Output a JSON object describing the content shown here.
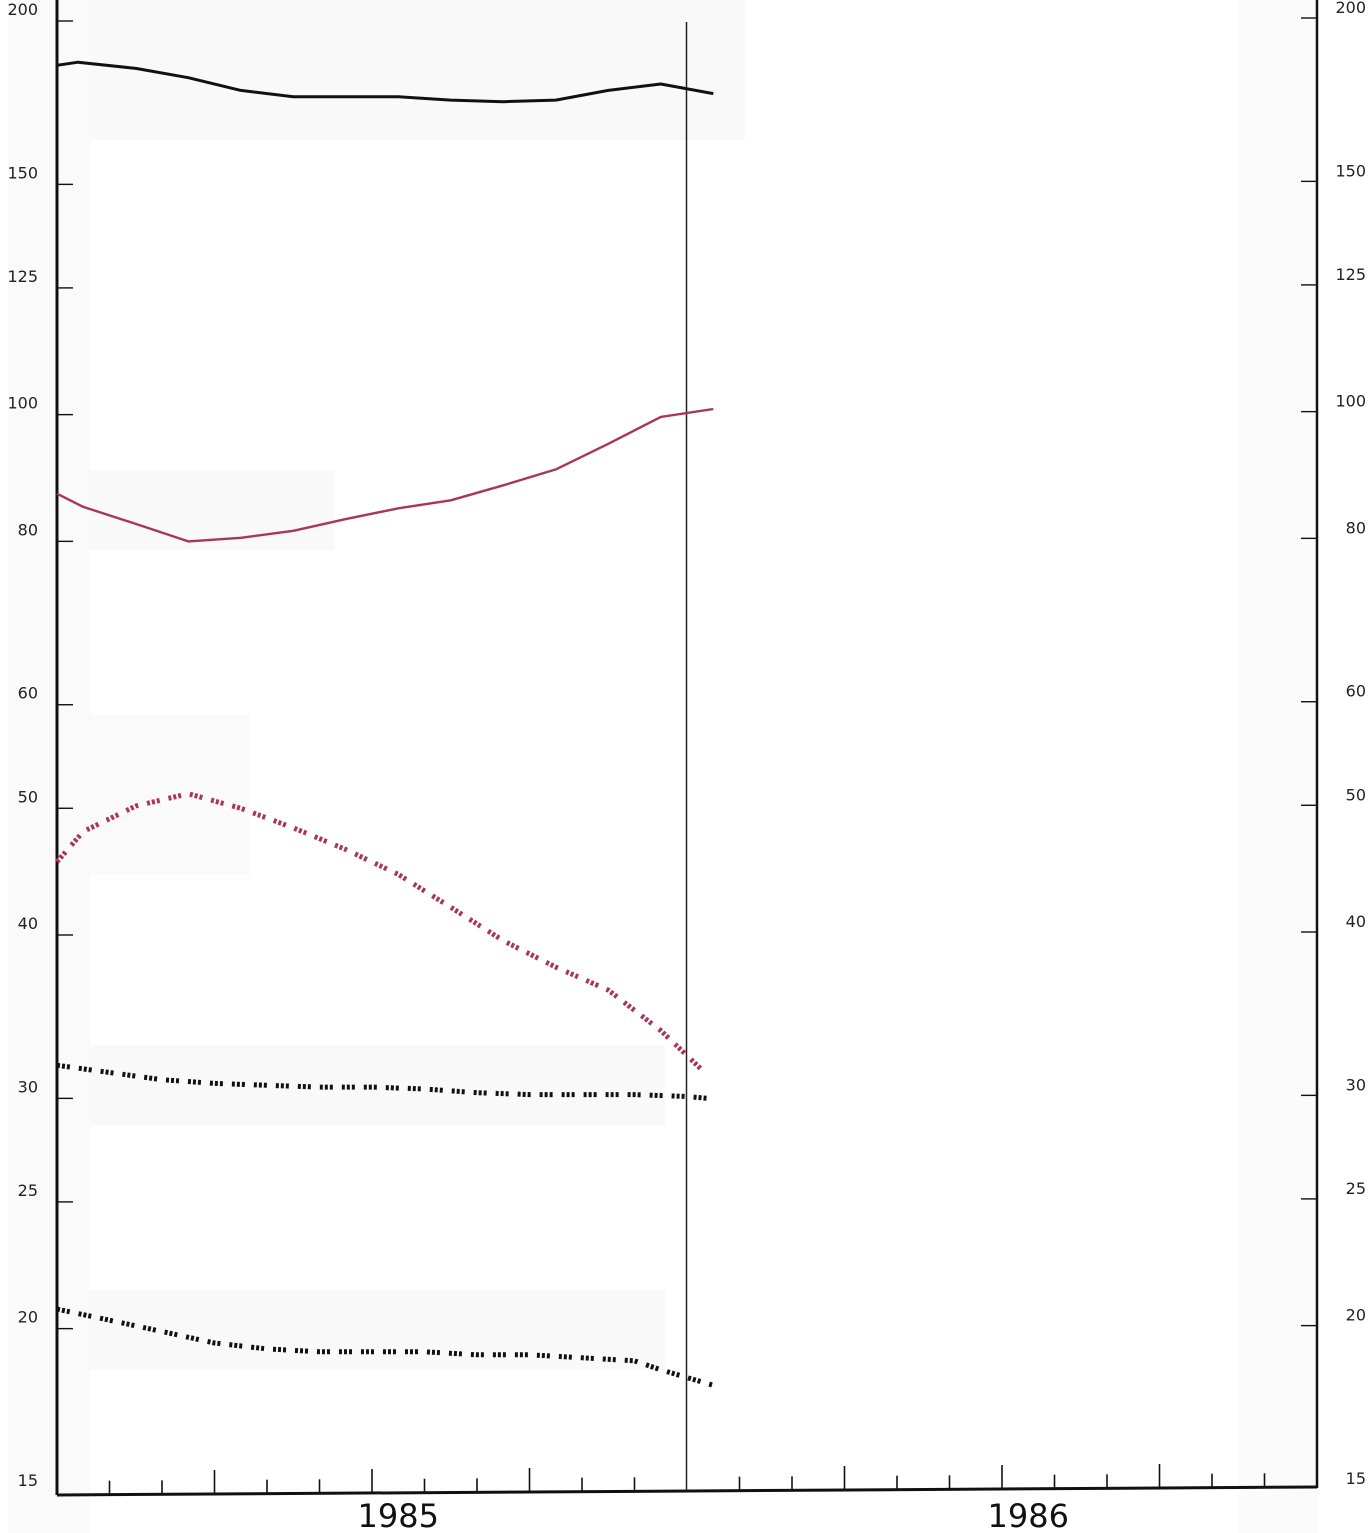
{
  "chart_data": {
    "type": "line",
    "title": "",
    "xlabel": "",
    "ylabel": "",
    "y_scale": "log",
    "ylim": [
      15,
      200
    ],
    "y_ticks": [
      200,
      150,
      125,
      100,
      80,
      60,
      50,
      40,
      30,
      25,
      20,
      15
    ],
    "y_tick_labels": [
      "200",
      "150",
      "125",
      "100",
      "80",
      "60",
      "50",
      "40",
      "30",
      "25",
      "20",
      "15"
    ],
    "x_axis": {
      "unit": "month",
      "start": "1985-01",
      "end": "1986-12",
      "year_labels": [
        {
          "label": "1985",
          "center_month": 6.5
        },
        {
          "label": "1986",
          "center_month": 18.5
        }
      ],
      "marker_month": 12
    },
    "grid": false,
    "legend": "none",
    "colors": {
      "black": "#111111",
      "crimson": "#a8365a"
    },
    "series": [
      {
        "style": "solid",
        "color": "black",
        "x": [
          0,
          0.4,
          1.5,
          2.5,
          3.5,
          4.5,
          5.5,
          6.5,
          7.5,
          8.5,
          9.5,
          10.5,
          11.5,
          12.5
        ],
        "y": [
          185,
          186,
          184,
          181,
          177,
          175,
          175,
          175,
          174,
          173.5,
          174,
          177,
          179,
          176
        ]
      },
      {
        "style": "solid",
        "color": "crimson",
        "x": [
          0,
          0.5,
          1.5,
          2.5,
          3.5,
          4.5,
          5.5,
          6.5,
          7.5,
          8.5,
          9.5,
          10.5,
          11.5,
          12.5
        ],
        "y": [
          87,
          85,
          82.5,
          80,
          80.5,
          81.5,
          83.2,
          84.8,
          86,
          88.3,
          90.8,
          95,
          99.6,
          101
        ]
      },
      {
        "style": "dotted",
        "color": "crimson",
        "x": [
          0,
          0.5,
          1.5,
          2.5,
          3.5,
          4.5,
          5.5,
          6.5,
          7.5,
          8.5,
          9.5,
          10.5,
          11.5,
          12.3
        ],
        "y": [
          45.5,
          48,
          50.2,
          51.3,
          50,
          48.3,
          46.5,
          44.5,
          42,
          39.6,
          37.8,
          36.3,
          33.8,
          31.5
        ]
      },
      {
        "style": "dotted",
        "color": "black",
        "x": [
          0,
          1,
          2,
          3,
          4,
          5,
          6,
          7,
          8,
          9,
          10,
          11,
          12,
          12.4
        ],
        "y": [
          31.8,
          31.4,
          31,
          30.8,
          30.7,
          30.6,
          30.6,
          30.5,
          30.3,
          30.2,
          30.2,
          30.2,
          30.1,
          30
        ]
      },
      {
        "style": "dotted",
        "color": "black",
        "x": [
          0,
          1,
          2,
          3,
          4,
          5,
          6,
          7,
          8,
          9,
          10,
          11,
          11.5,
          12.5
        ],
        "y": [
          20.7,
          20.3,
          19.9,
          19.5,
          19.3,
          19.2,
          19.2,
          19.2,
          19.1,
          19.1,
          19,
          18.9,
          18.6,
          18.1
        ]
      }
    ]
  }
}
